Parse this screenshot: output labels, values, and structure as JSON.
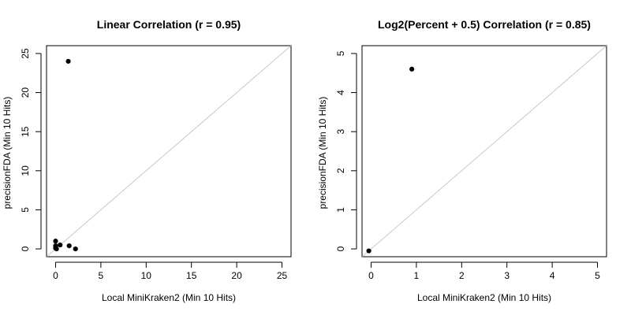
{
  "chart_data": [
    {
      "type": "scatter",
      "title": "Linear Correlation (r = 0.95)",
      "xlabel": "Local MiniKraken2 (Min 10 Hits)",
      "ylabel": "precisionFDA (Min 10 Hits)",
      "xlim": [
        -1,
        26
      ],
      "ylim": [
        -1,
        26
      ],
      "x_ticks": [
        0,
        5,
        10,
        15,
        20,
        25
      ],
      "y_ticks": [
        0,
        5,
        10,
        15,
        20,
        25
      ],
      "x_tick_labels": [
        "0",
        "5",
        "10",
        "15",
        "20",
        "25"
      ],
      "y_tick_labels": [
        "0",
        "5",
        "10",
        "15",
        "20",
        "25"
      ],
      "grid": false,
      "identity_line": true,
      "line_color": "#c8c8c8",
      "point_color": "#000000",
      "series": [
        {
          "x": [
            1.4,
            0.0,
            0.0,
            0.0,
            0.1,
            0.5,
            1.5,
            2.2
          ],
          "y": [
            24.0,
            1.0,
            0.4,
            0.1,
            0.0,
            0.5,
            0.4,
            0.0
          ]
        }
      ]
    },
    {
      "type": "scatter",
      "title": "Log2(Percent + 0.5) Correlation (r = 0.85)",
      "xlabel": "Local MiniKraken2 (Min 10 Hits)",
      "ylabel": "precisionFDA (Min 10 Hits)",
      "xlim": [
        -0.2,
        5.2
      ],
      "ylim": [
        -0.2,
        5.2
      ],
      "x_ticks": [
        0,
        1,
        2,
        3,
        4,
        5
      ],
      "y_ticks": [
        0,
        1,
        2,
        3,
        4,
        5
      ],
      "x_tick_labels": [
        "0",
        "1",
        "2",
        "3",
        "4",
        "5"
      ],
      "y_tick_labels": [
        "0",
        "1",
        "2",
        "3",
        "4",
        "5"
      ],
      "grid": false,
      "identity_line": true,
      "line_color": "#c8c8c8",
      "point_color": "#000000",
      "series": [
        {
          "x": [
            0.9,
            -0.05
          ],
          "y": [
            4.6,
            -0.05
          ]
        }
      ]
    }
  ]
}
